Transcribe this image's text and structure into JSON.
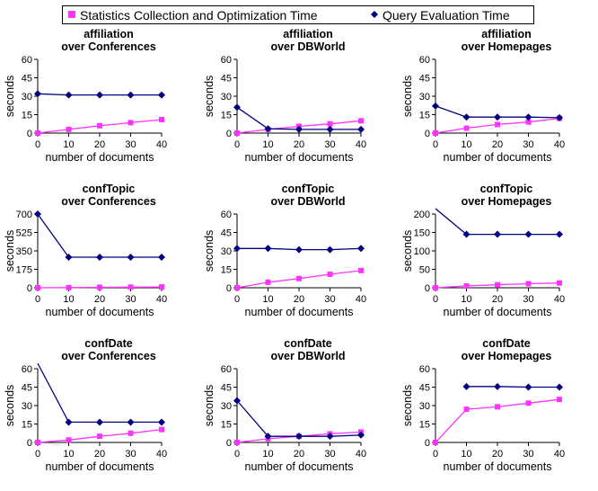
{
  "legend": {
    "stats_label": "Statistics Collection and Optimization Time",
    "query_label": "Query Evaluation Time"
  },
  "colors": {
    "stats": "#ff33ff",
    "query": "#000080"
  },
  "chart_data": [
    {
      "type": "line",
      "title": [
        "affiliation",
        "over Conferences"
      ],
      "xlabel": "number of documents",
      "ylabel": "seconds",
      "x": [
        0,
        10,
        20,
        30,
        40
      ],
      "xlim": [
        0,
        40
      ],
      "ylim": [
        0,
        60
      ],
      "yticks": [
        0,
        15,
        30,
        45,
        60
      ],
      "series": [
        {
          "name": "Statistics Collection and Optimization Time",
          "x": [
            0,
            10,
            20,
            30,
            40
          ],
          "values": [
            0,
            3,
            6,
            8.5,
            11
          ]
        },
        {
          "name": "Query Evaluation Time",
          "x": [
            0,
            10,
            20,
            30,
            40
          ],
          "values": [
            32,
            31,
            31,
            31,
            31
          ]
        }
      ]
    },
    {
      "type": "line",
      "title": [
        "affiliation",
        "over DBWorld"
      ],
      "xlabel": "number of documents",
      "ylabel": "seconds",
      "x": [
        0,
        10,
        20,
        30,
        40
      ],
      "xlim": [
        0,
        40
      ],
      "ylim": [
        0,
        60
      ],
      "yticks": [
        0,
        15,
        30,
        45,
        60
      ],
      "series": [
        {
          "name": "Statistics Collection and Optimization Time",
          "x": [
            0,
            10,
            20,
            30,
            40
          ],
          "values": [
            0,
            3,
            5.5,
            7.5,
            10
          ]
        },
        {
          "name": "Query Evaluation Time",
          "x": [
            0,
            10,
            20,
            30,
            40
          ],
          "values": [
            21,
            3.5,
            3,
            3,
            3
          ]
        }
      ]
    },
    {
      "type": "line",
      "title": [
        "affiliation",
        "over Homepages"
      ],
      "xlabel": "number of documents",
      "ylabel": "seconds",
      "x": [
        0,
        10,
        20,
        30,
        40
      ],
      "xlim": [
        0,
        40
      ],
      "ylim": [
        0,
        60
      ],
      "yticks": [
        0,
        15,
        30,
        45,
        60
      ],
      "series": [
        {
          "name": "Statistics Collection and Optimization Time",
          "x": [
            0,
            10,
            20,
            30,
            40
          ],
          "values": [
            0,
            4,
            7,
            9,
            12
          ]
        },
        {
          "name": "Query Evaluation Time",
          "x": [
            0,
            10,
            20,
            30,
            40
          ],
          "values": [
            22,
            13,
            13,
            13,
            12.5
          ]
        }
      ]
    },
    {
      "type": "line",
      "title": [
        "confTopic",
        "over Conferences"
      ],
      "xlabel": "number of documents",
      "ylabel": "seconds",
      "x": [
        0,
        10,
        20,
        30,
        40
      ],
      "xlim": [
        0,
        40
      ],
      "ylim": [
        0,
        700
      ],
      "yticks": [
        0,
        175,
        350,
        525,
        700
      ],
      "series": [
        {
          "name": "Statistics Collection and Optimization Time",
          "x": [
            0,
            10,
            20,
            30,
            40
          ],
          "values": [
            0,
            2,
            4,
            6,
            8
          ]
        },
        {
          "name": "Query Evaluation Time",
          "x": [
            0,
            10,
            20,
            30,
            40
          ],
          "values": [
            700,
            290,
            290,
            290,
            290
          ]
        }
      ]
    },
    {
      "type": "line",
      "title": [
        "confTopic",
        "over DBWorld"
      ],
      "xlabel": "number of documents",
      "ylabel": "seconds",
      "x": [
        0,
        10,
        20,
        30,
        40
      ],
      "xlim": [
        0,
        40
      ],
      "ylim": [
        0,
        60
      ],
      "yticks": [
        0,
        15,
        30,
        45,
        60
      ],
      "series": [
        {
          "name": "Statistics Collection and Optimization Time",
          "x": [
            0,
            10,
            20,
            30,
            40
          ],
          "values": [
            0,
            4.5,
            7.5,
            11,
            14
          ]
        },
        {
          "name": "Query Evaluation Time",
          "x": [
            0,
            10,
            20,
            30,
            40
          ],
          "values": [
            32,
            32,
            31,
            31,
            32
          ]
        }
      ]
    },
    {
      "type": "line",
      "title": [
        "confTopic",
        "over Homepages"
      ],
      "xlabel": "number of documents",
      "ylabel": "seconds",
      "x": [
        0,
        10,
        20,
        30,
        40
      ],
      "xlim": [
        0,
        40
      ],
      "ylim": [
        0,
        200
      ],
      "yticks": [
        0,
        50,
        100,
        150,
        200
      ],
      "series": [
        {
          "name": "Statistics Collection and Optimization Time",
          "x": [
            0,
            10,
            20,
            30,
            40
          ],
          "values": [
            0,
            5,
            8,
            11,
            13
          ]
        },
        {
          "name": "Query Evaluation Time",
          "x": [
            10,
            20,
            30,
            40
          ],
          "values": [
            145,
            145,
            145,
            145
          ],
          "clipped_from_x": 0
        }
      ]
    },
    {
      "type": "line",
      "title": [
        "confDate",
        "over Conferences"
      ],
      "xlabel": "number of documents",
      "ylabel": "seconds",
      "x": [
        0,
        10,
        20,
        30,
        40
      ],
      "xlim": [
        0,
        40
      ],
      "ylim": [
        0,
        60
      ],
      "yticks": [
        0,
        15,
        30,
        45,
        60
      ],
      "series": [
        {
          "name": "Statistics Collection and Optimization Time",
          "x": [
            0,
            10,
            20,
            30,
            40
          ],
          "values": [
            0,
            2,
            5,
            7.5,
            10.5
          ]
        },
        {
          "name": "Query Evaluation Time",
          "x": [
            10,
            20,
            30,
            40
          ],
          "values": [
            16.5,
            16.5,
            16.5,
            16.5
          ],
          "clipped_from_x": 0
        }
      ]
    },
    {
      "type": "line",
      "title": [
        "confDate",
        "over DBWorld"
      ],
      "xlabel": "number of documents",
      "ylabel": "seconds",
      "x": [
        0,
        10,
        20,
        30,
        40
      ],
      "xlim": [
        0,
        40
      ],
      "ylim": [
        0,
        60
      ],
      "yticks": [
        0,
        15,
        30,
        45,
        60
      ],
      "series": [
        {
          "name": "Statistics Collection and Optimization Time",
          "x": [
            0,
            10,
            20,
            30,
            40
          ],
          "values": [
            0,
            3,
            5,
            7,
            8.5
          ]
        },
        {
          "name": "Query Evaluation Time",
          "x": [
            0,
            10,
            20,
            30,
            40
          ],
          "values": [
            34,
            5,
            5,
            5,
            6
          ]
        }
      ]
    },
    {
      "type": "line",
      "title": [
        "confDate",
        "over Homepages"
      ],
      "xlabel": "number of documents",
      "ylabel": "seconds",
      "x": [
        0,
        10,
        20,
        30,
        40
      ],
      "xlim": [
        0,
        40
      ],
      "ylim": [
        0,
        60
      ],
      "yticks": [
        0,
        15,
        30,
        45,
        60
      ],
      "series": [
        {
          "name": "Statistics Collection and Optimization Time",
          "x": [
            0,
            10,
            20,
            30,
            40
          ],
          "values": [
            0,
            27,
            29,
            32,
            35
          ]
        },
        {
          "name": "Query Evaluation Time",
          "x": [
            10,
            20,
            30,
            40
          ],
          "values": [
            45.5,
            45.5,
            45,
            45
          ]
        }
      ]
    }
  ]
}
